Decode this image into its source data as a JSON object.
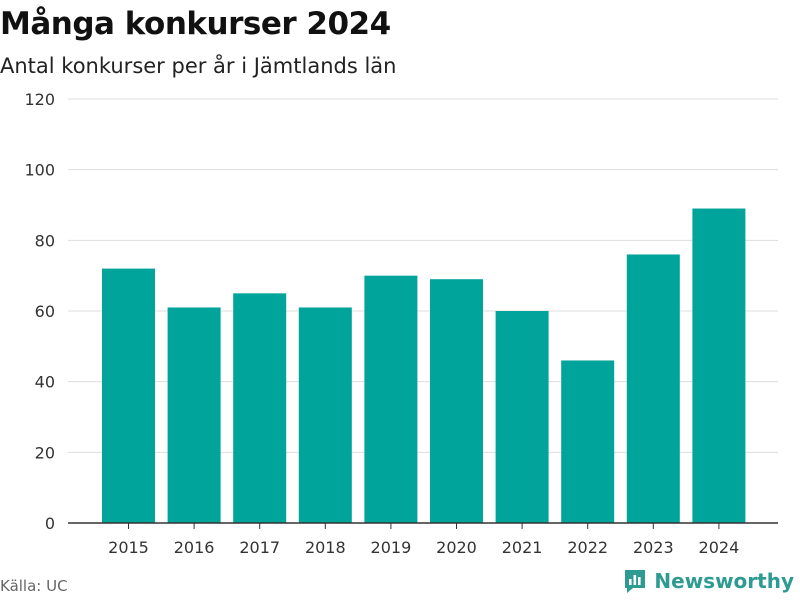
{
  "title": "Många konkurser 2024",
  "subtitle": "Antal konkurser per år i Jämtlands län",
  "source": "Källa: UC",
  "brand": {
    "name": "Newsworthy",
    "color": "#2e9b92"
  },
  "colors": {
    "bar": "#00a49a",
    "grid": "#dddddd",
    "axis": "#333333",
    "tick_text": "#333333"
  },
  "chart_data": {
    "type": "bar",
    "categories": [
      "2015",
      "2016",
      "2017",
      "2018",
      "2019",
      "2020",
      "2021",
      "2022",
      "2023",
      "2024"
    ],
    "values": [
      72,
      61,
      65,
      61,
      70,
      69,
      60,
      46,
      76,
      89
    ],
    "ylim": [
      0,
      120
    ],
    "yticks": [
      0,
      20,
      40,
      60,
      80,
      100,
      120
    ],
    "grid": true,
    "xlabel": "",
    "ylabel": ""
  }
}
